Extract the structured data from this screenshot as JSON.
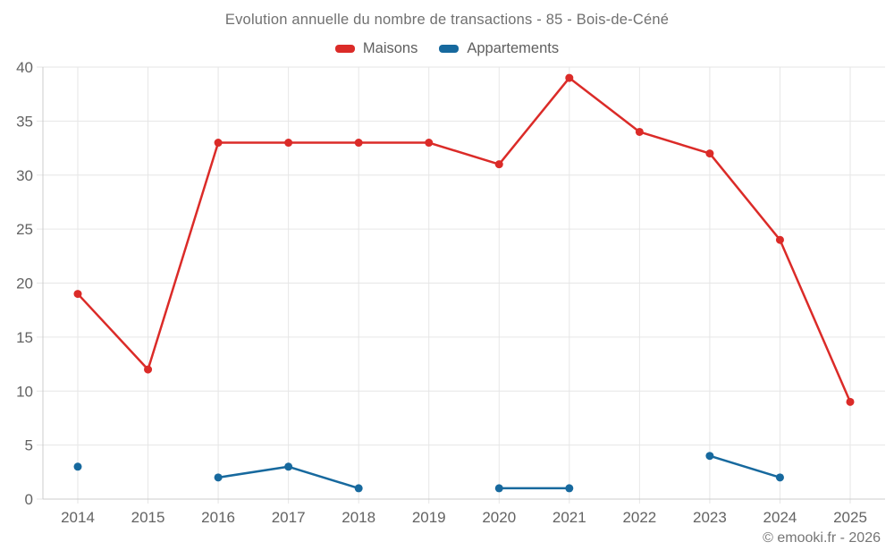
{
  "page": {
    "footer": "© emooki.fr - 2026"
  },
  "colors": {
    "background": "#ffffff",
    "grid": "#e6e6e6",
    "axis": "#cccccc",
    "tick_label": "#636363",
    "title_text": "#707070",
    "legend_text": "#5f5f5f",
    "footer_text": "#757575",
    "maisons": "#db2b28",
    "appartements": "#17699e"
  },
  "chart_data": {
    "type": "line",
    "title": "Evolution annuelle du nombre de transactions - 85 - Bois-de-Céné",
    "x": [
      "2014",
      "2015",
      "2016",
      "2017",
      "2018",
      "2019",
      "2020",
      "2021",
      "2022",
      "2023",
      "2024",
      "2025"
    ],
    "series": [
      {
        "name": "Maisons",
        "color": "#db2b28",
        "values": [
          19,
          12,
          33,
          33,
          33,
          33,
          31,
          39,
          34,
          32,
          24,
          9
        ]
      },
      {
        "name": "Appartements",
        "color": "#17699e",
        "values": [
          3,
          null,
          2,
          3,
          1,
          null,
          1,
          1,
          null,
          4,
          2,
          null
        ]
      }
    ],
    "ylim": [
      0,
      40
    ],
    "yticks": [
      0,
      5,
      10,
      15,
      20,
      25,
      30,
      35,
      40
    ],
    "xlabel": "",
    "ylabel": "",
    "grid": true,
    "legend_position": "top",
    "point_radius": 4.5,
    "line_width": 2.5
  }
}
